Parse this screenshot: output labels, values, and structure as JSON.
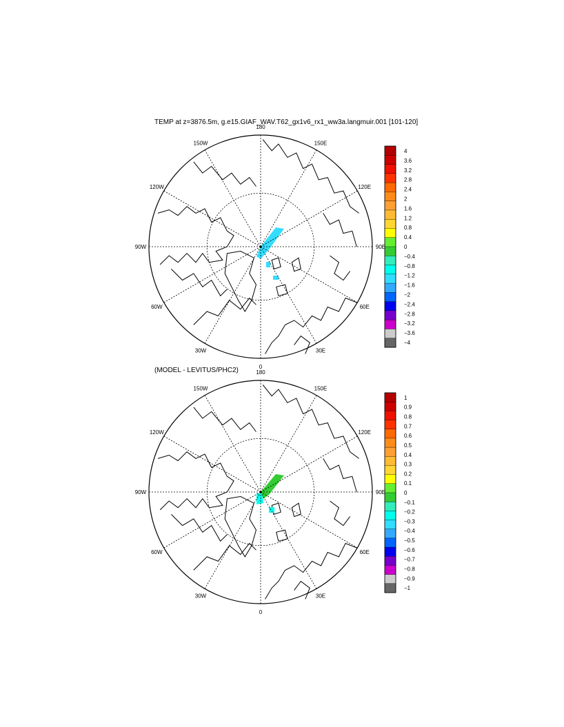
{
  "figure": {
    "title": "TEMP at z=3876.5m, g.e15.GIAF_WAV.T62_gx1v6_rx1_ww3a.langmuir.001 [101-120]",
    "subtitle": "(MODEL - LEVITUS/PHC2)"
  },
  "chart_data": [
    {
      "type": "heatmap",
      "projection": "north-polar-stereographic",
      "field": "TEMP",
      "longitude_labels": [
        "180",
        "150E",
        "120E",
        "90E",
        "60E",
        "30E",
        "0",
        "30W",
        "60W",
        "90W",
        "120W",
        "150W"
      ],
      "colorbar": {
        "labels": [
          "4",
          "3.6",
          "3.2",
          "2.8",
          "2.4",
          "2",
          "1.6",
          "1.2",
          "0.8",
          "0.4",
          "0",
          "−0.4",
          "−0.8",
          "−1.2",
          "−1.6",
          "−2",
          "−2.4",
          "−2.8",
          "−3.2",
          "−3.6",
          "−4"
        ],
        "colors": [
          "#b30000",
          "#cc0000",
          "#ee1100",
          "#ff3300",
          "#ff6a00",
          "#ff8c1a",
          "#ffa033",
          "#ffbb33",
          "#ffd633",
          "#ffff00",
          "#66ee33",
          "#33cc33",
          "#33eebb",
          "#00ffee",
          "#33ddff",
          "#33aaff",
          "#0066ff",
          "#0000ee",
          "#7700cc",
          "#cc00cc",
          "#cccccc",
          "#666666"
        ]
      },
      "data_regions": [
        {
          "description": "cyan band along 180-0 meridian near pole",
          "value_range": [
            -1.2,
            -0.8
          ]
        }
      ]
    },
    {
      "type": "heatmap",
      "projection": "north-polar-stereographic",
      "field": "MODEL - LEVITUS/PHC2",
      "longitude_labels": [
        "180",
        "150E",
        "120E",
        "90E",
        "60E",
        "30E",
        "0",
        "30W",
        "60W",
        "90W",
        "120W",
        "150W"
      ],
      "colorbar": {
        "labels": [
          "1",
          "0.9",
          "0.8",
          "0.7",
          "0.6",
          "0.5",
          "0.4",
          "0.3",
          "0.2",
          "0.1",
          "0",
          "−0.1",
          "−0.2",
          "−0.3",
          "−0.4",
          "−0.5",
          "−0.6",
          "−0.7",
          "−0.8",
          "−0.9",
          "−1"
        ],
        "colors": [
          "#b30000",
          "#cc0000",
          "#ee1100",
          "#ff3300",
          "#ff6a00",
          "#ff8c1a",
          "#ffa033",
          "#ffbb33",
          "#ffd633",
          "#ffff00",
          "#66ee33",
          "#33cc33",
          "#33eebb",
          "#00ffee",
          "#33ddff",
          "#33aaff",
          "#0066ff",
          "#0000ee",
          "#7700cc",
          "#cc00cc",
          "#cccccc",
          "#666666"
        ]
      },
      "data_regions": [
        {
          "description": "green band along 180-0 meridian near pole",
          "value_range": [
            0.1,
            0.2
          ]
        },
        {
          "description": "cyan patches near pole",
          "value_range": [
            -0.2,
            0
          ]
        }
      ]
    }
  ]
}
